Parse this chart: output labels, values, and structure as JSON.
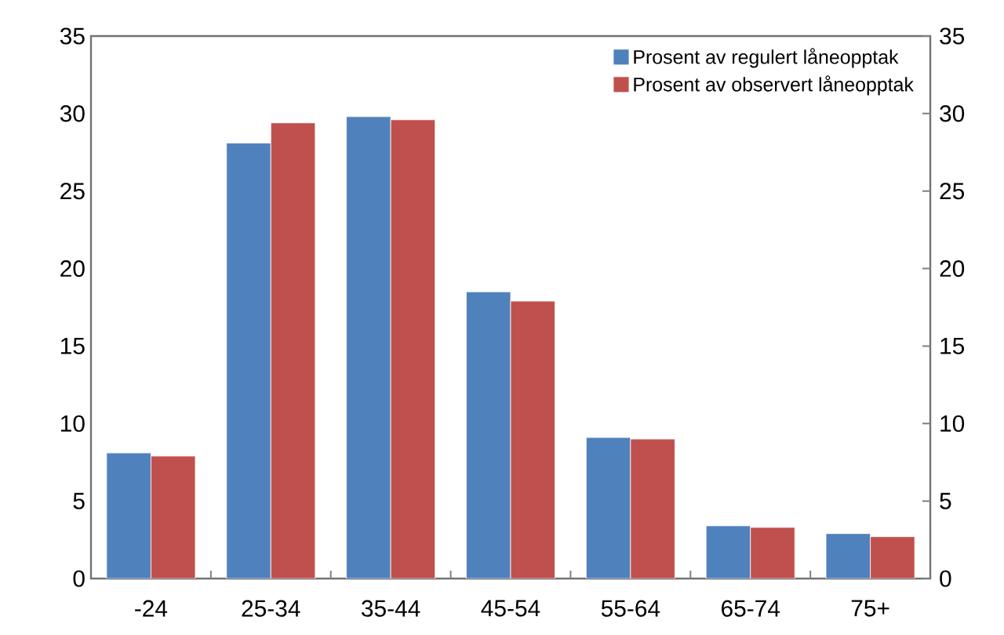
{
  "chart_data": {
    "type": "bar",
    "categories": [
      "-24",
      "25-34",
      "35-44",
      "45-54",
      "55-64",
      "65-74",
      "75+"
    ],
    "series": [
      {
        "name": "Prosent av regulert låneopptak",
        "color": "#4f81bd",
        "values": [
          8.1,
          28.1,
          29.8,
          18.5,
          9.1,
          3.4,
          2.9
        ]
      },
      {
        "name": "Prosent av observert låneopptak",
        "color": "#c0504d",
        "values": [
          7.9,
          29.4,
          29.6,
          17.9,
          9.0,
          3.3,
          2.7
        ]
      }
    ],
    "ylim": [
      0,
      35
    ],
    "yticks": [
      0,
      5,
      10,
      15,
      20,
      25,
      30,
      35
    ],
    "y2lim": [
      0,
      35
    ],
    "y2ticks": [
      0,
      5,
      10,
      15,
      20,
      25,
      30,
      35
    ],
    "legend": "top right",
    "grid": false
  }
}
